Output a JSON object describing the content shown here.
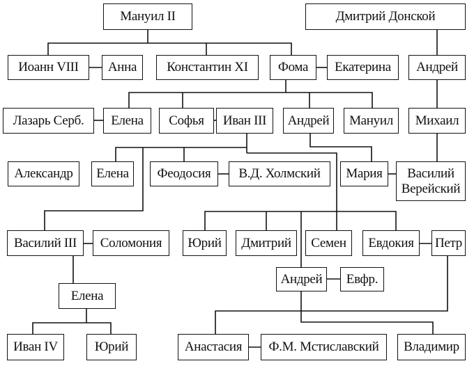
{
  "persons": {
    "manuil2": "Мануил II",
    "dmitry_donskoy": "Дмитрий Донской",
    "ioann8": "Иоанн VIII",
    "anna": "Анна",
    "konstantin11": "Константин XI",
    "foma": "Фома",
    "ekaterina": "Екатерина",
    "andrey_r2": "Андрей",
    "lazar": "Лазарь Серб.",
    "elena_r3": "Елена",
    "sofya": "Софья",
    "ivan3": "Иван III",
    "andrey_r3": "Андрей",
    "manuil": "Мануил",
    "mikhail": "Михаил",
    "aleksandr": "Александр",
    "elena_r4": "Елена",
    "feodosiya": "Феодосия",
    "kholmsky": "В.Д. Холмский",
    "mariya": "Мария",
    "vasily_vereysky": "Василий Верейский",
    "vasily3": "Василий III",
    "solomoniya": "Соломония",
    "yury_r5": "Юрий",
    "dmitry": "Дмитрий",
    "semen": "Семен",
    "evdokiya": "Евдокия",
    "petr": "Петр",
    "andrey_r6": "Андрей",
    "evfr": "Евфр.",
    "elena_r6": "Елена",
    "ivan4": "Иван IV",
    "yury_r7": "Юрий",
    "anastasiya": "Анастасия",
    "mstislavsky": "Ф.М. Мстиславский",
    "vladimir": "Владимир"
  }
}
